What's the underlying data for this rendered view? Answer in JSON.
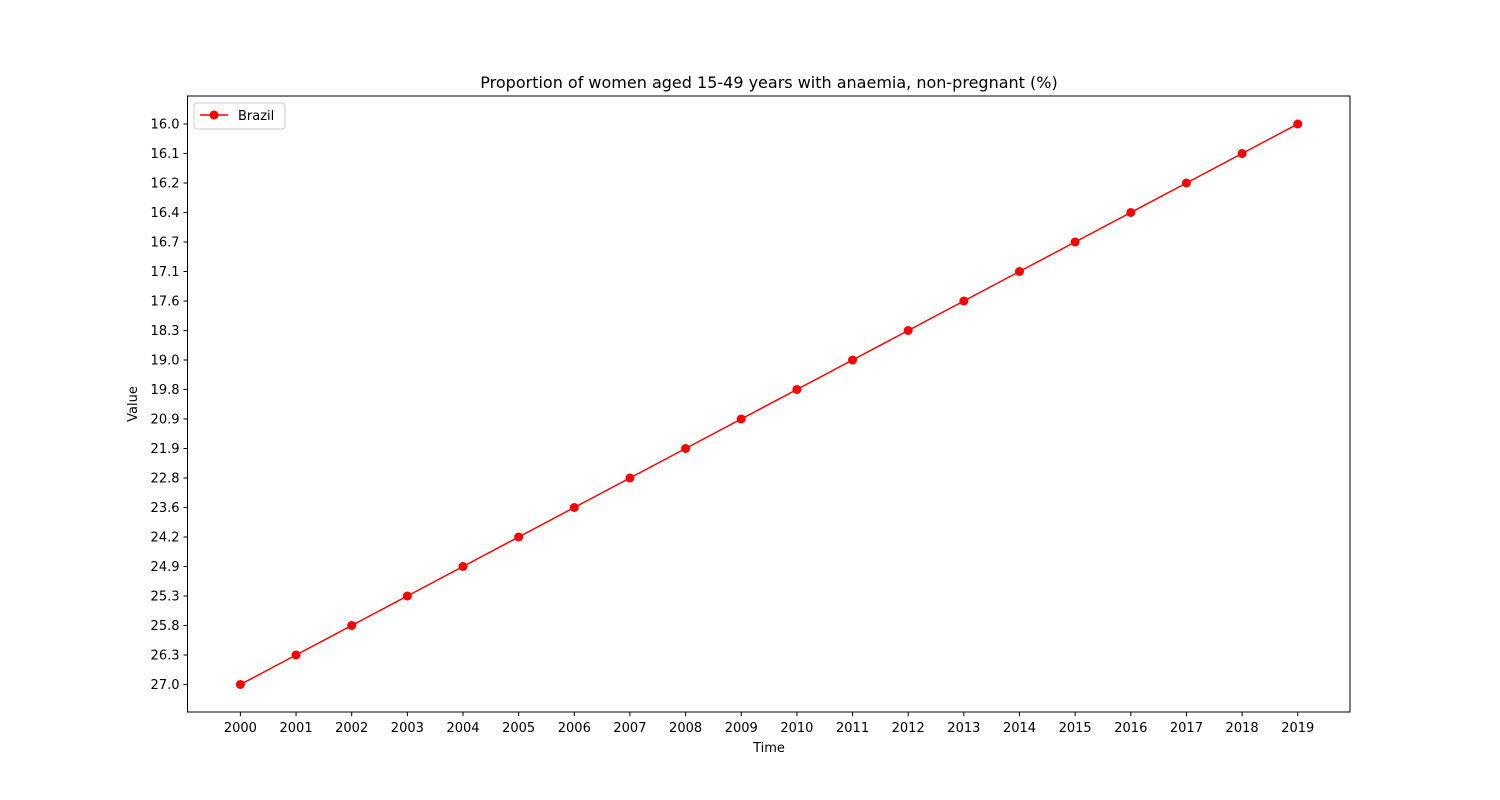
{
  "chart_data": {
    "type": "line",
    "title": "Proportion of women aged 15-49 years with anaemia, non-pregnant (%)",
    "xlabel": "Time",
    "ylabel": "Value",
    "x": [
      "2000",
      "2001",
      "2002",
      "2003",
      "2004",
      "2005",
      "2006",
      "2007",
      "2008",
      "2009",
      "2010",
      "2011",
      "2012",
      "2013",
      "2014",
      "2015",
      "2016",
      "2017",
      "2018",
      "2019"
    ],
    "y_axis_categorical": true,
    "y_tick_labels_top_to_bottom": [
      "16.0",
      "16.1",
      "16.2",
      "16.4",
      "16.7",
      "17.1",
      "17.6",
      "18.3",
      "19.0",
      "19.8",
      "20.9",
      "21.9",
      "22.8",
      "23.6",
      "24.2",
      "24.9",
      "25.3",
      "25.8",
      "26.3",
      "27.0"
    ],
    "series": [
      {
        "name": "Brazil",
        "color": "#ff0000",
        "marker": "circle",
        "values": [
          "27.0",
          "26.3",
          "25.8",
          "25.3",
          "24.9",
          "24.2",
          "23.6",
          "22.8",
          "21.9",
          "20.9",
          "19.8",
          "19.0",
          "18.3",
          "17.6",
          "17.1",
          "16.7",
          "16.4",
          "16.2",
          "16.1",
          "16.0"
        ]
      }
    ],
    "grid": false,
    "legend_position": "top-left"
  }
}
